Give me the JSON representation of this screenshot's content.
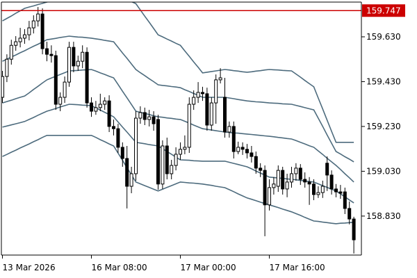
{
  "chart_data": {
    "type": "candlestick",
    "categories": [
      "13 Mar 2026",
      null,
      null,
      null,
      null,
      null,
      null,
      null,
      null,
      null,
      null,
      null,
      null,
      null,
      null,
      null,
      null,
      null,
      null,
      null,
      "16 Mar 08:00",
      null,
      null,
      null,
      null,
      null,
      null,
      null,
      null,
      null,
      null,
      null,
      null,
      null,
      null,
      null,
      null,
      null,
      null,
      null,
      "17 Mar 00:00",
      null,
      null,
      null,
      null,
      null,
      null,
      null,
      null,
      null,
      null,
      null,
      null,
      null,
      null,
      null,
      null,
      null,
      null,
      null,
      "17 Mar 16:00",
      null,
      null,
      null,
      null,
      null,
      null,
      null,
      null,
      null,
      null,
      null,
      null,
      null,
      null,
      null,
      null,
      null,
      null,
      null
    ],
    "open": [
      159.36,
      159.453,
      159.53,
      159.592,
      159.608,
      159.624,
      159.639,
      159.67,
      159.701,
      159.732,
      159.577,
      159.552,
      159.546,
      159.329,
      159.36,
      159.428,
      159.583,
      159.5,
      159.521,
      159.561,
      159.335,
      159.298,
      159.314,
      159.329,
      159.344,
      159.23,
      159.22,
      159.137,
      159.087,
      158.963,
      159.019,
      159.267,
      159.292,
      159.261,
      159.273,
      159.261,
      158.973,
      159.143,
      159.019,
      159.056,
      159.106,
      159.128,
      159.137,
      159.329,
      159.36,
      159.382,
      159.376,
      159.236,
      159.335,
      159.438,
      159.36,
      159.205,
      159.23,
      159.118,
      159.137,
      159.128,
      159.112,
      159.096,
      159.044,
      159.034,
      158.88,
      158.957,
      158.963,
      159.034,
      158.951,
      158.982,
      159.019,
      159.044,
      158.994,
      158.982,
      158.973,
      158.926,
      158.935,
      159.066,
      159.013,
      158.951,
      158.938,
      158.938,
      158.864,
      158.817
    ],
    "high": [
      159.478,
      159.552,
      159.617,
      159.633,
      159.67,
      159.664,
      159.701,
      159.726,
      159.763,
      159.757,
      159.608,
      159.592,
      159.568,
      159.382,
      159.453,
      159.608,
      159.608,
      159.546,
      159.592,
      159.583,
      159.36,
      159.344,
      159.376,
      159.36,
      159.369,
      159.261,
      159.242,
      159.159,
      159.143,
      159.05,
      159.298,
      159.32,
      159.314,
      159.304,
      159.298,
      159.282,
      159.168,
      159.18,
      159.081,
      159.137,
      159.159,
      159.19,
      159.36,
      159.391,
      159.428,
      159.407,
      159.403,
      159.36,
      159.462,
      159.49,
      159.447,
      159.252,
      159.252,
      159.162,
      159.159,
      159.152,
      159.143,
      159.118,
      159.066,
      159.056,
      158.994,
      159.004,
      159.056,
      159.05,
      159.019,
      159.05,
      159.066,
      159.062,
      159.025,
      159.004,
      158.994,
      158.963,
      158.988,
      159.096,
      159.034,
      158.973,
      158.969,
      158.957,
      158.895,
      158.827
    ],
    "low": [
      159.335,
      159.428,
      159.506,
      159.568,
      159.583,
      159.599,
      159.614,
      159.645,
      159.676,
      159.552,
      159.521,
      159.515,
      159.304,
      159.298,
      159.335,
      159.407,
      159.472,
      159.478,
      159.49,
      159.314,
      159.273,
      159.282,
      159.298,
      159.304,
      159.205,
      159.19,
      159.112,
      159.05,
      158.864,
      158.932,
      158.988,
      159.242,
      159.236,
      159.23,
      159.211,
      158.948,
      158.951,
      158.994,
      158.994,
      159.034,
      159.081,
      159.106,
      159.112,
      159.304,
      159.335,
      159.344,
      159.211,
      159.211,
      159.242,
      159.422,
      159.18,
      159.18,
      159.087,
      159.106,
      159.103,
      159.087,
      159.069,
      159.019,
      159.004,
      158.74,
      158.855,
      158.926,
      158.938,
      158.926,
      158.914,
      158.957,
      158.988,
      158.969,
      158.957,
      158.88,
      158.901,
      158.911,
      158.911,
      158.942,
      158.926,
      158.914,
      158.907,
      158.839,
      158.793,
      158.663
    ],
    "close": [
      159.453,
      159.53,
      159.592,
      159.608,
      159.624,
      159.639,
      159.67,
      159.701,
      159.732,
      159.577,
      159.552,
      159.546,
      159.329,
      159.36,
      159.428,
      159.583,
      159.5,
      159.521,
      159.561,
      159.335,
      159.298,
      159.314,
      159.329,
      159.344,
      159.23,
      159.22,
      159.137,
      159.087,
      158.963,
      159.019,
      159.267,
      159.292,
      159.261,
      159.273,
      159.242,
      158.973,
      159.143,
      159.019,
      159.056,
      159.106,
      159.128,
      159.137,
      159.329,
      159.36,
      159.382,
      159.376,
      159.236,
      159.335,
      159.438,
      159.447,
      159.205,
      159.23,
      159.118,
      159.137,
      159.128,
      159.112,
      159.096,
      159.044,
      159.034,
      158.88,
      158.957,
      158.973,
      159.034,
      158.951,
      158.982,
      159.019,
      159.044,
      158.994,
      158.982,
      158.973,
      158.926,
      158.935,
      158.963,
      159.013,
      158.951,
      158.938,
      158.932,
      158.864,
      158.817,
      158.724
    ],
    "up_color": "#ffffff",
    "down_color": "#000000",
    "bands": [
      {
        "color": "#4d6b7d",
        "values": [
          159.701,
          159.712,
          159.723,
          159.735,
          159.746,
          159.757,
          159.763,
          159.768,
          159.774,
          159.779,
          159.785,
          159.79,
          159.795,
          159.8,
          159.805,
          159.81,
          159.813,
          159.816,
          159.819,
          159.822,
          159.825,
          159.825,
          159.825,
          159.825,
          159.825,
          159.825,
          159.816,
          159.806,
          159.797,
          159.787,
          159.778,
          159.75,
          159.722,
          159.695,
          159.667,
          159.639,
          159.63,
          159.62,
          159.611,
          159.601,
          159.592,
          159.567,
          159.543,
          159.518,
          159.494,
          159.469,
          159.472,
          159.475,
          159.478,
          159.481,
          159.484,
          159.482,
          159.479,
          159.477,
          159.474,
          159.472,
          159.474,
          159.477,
          159.479,
          159.482,
          159.484,
          159.483,
          159.482,
          159.48,
          159.479,
          159.478,
          159.464,
          159.45,
          159.435,
          159.421,
          159.407,
          159.357,
          159.308,
          159.258,
          159.208,
          159.159,
          159.159,
          159.159,
          159.159,
          159.159
        ]
      },
      {
        "color": "#4d6b7d",
        "values": [
          159.521,
          159.53,
          159.54,
          159.549,
          159.559,
          159.568,
          159.578,
          159.588,
          159.597,
          159.607,
          159.617,
          159.62,
          159.623,
          159.627,
          159.63,
          159.633,
          159.631,
          159.629,
          159.628,
          159.626,
          159.624,
          159.621,
          159.618,
          159.614,
          159.611,
          159.608,
          159.583,
          159.558,
          159.534,
          159.509,
          159.484,
          159.47,
          159.457,
          159.443,
          159.43,
          159.416,
          159.413,
          159.411,
          159.408,
          159.406,
          159.403,
          159.394,
          159.386,
          159.377,
          159.369,
          159.36,
          159.36,
          159.36,
          159.36,
          159.36,
          159.36,
          159.357,
          159.354,
          159.35,
          159.347,
          159.344,
          159.342,
          159.34,
          159.339,
          159.337,
          159.335,
          159.334,
          159.333,
          159.331,
          159.33,
          159.329,
          159.324,
          159.319,
          159.314,
          159.309,
          159.304,
          159.267,
          159.23,
          159.192,
          159.155,
          159.118,
          159.107,
          159.095,
          159.084,
          159.072
        ]
      },
      {
        "color": "#4d6b7d",
        "values": [
          159.335,
          159.341,
          159.347,
          159.354,
          159.36,
          159.366,
          159.38,
          159.395,
          159.409,
          159.424,
          159.438,
          159.446,
          159.454,
          159.462,
          159.47,
          159.478,
          159.479,
          159.48,
          159.482,
          159.483,
          159.484,
          159.477,
          159.469,
          159.462,
          159.454,
          159.447,
          159.417,
          159.387,
          159.358,
          159.328,
          159.298,
          159.293,
          159.288,
          159.283,
          159.278,
          159.273,
          159.271,
          159.268,
          159.266,
          159.263,
          159.261,
          159.253,
          159.245,
          159.236,
          159.228,
          159.22,
          159.217,
          159.214,
          159.211,
          159.208,
          159.205,
          159.203,
          159.201,
          159.2,
          159.198,
          159.196,
          159.194,
          159.192,
          159.19,
          159.188,
          159.186,
          159.184,
          159.181,
          159.179,
          159.176,
          159.174,
          159.167,
          159.159,
          159.152,
          159.144,
          159.137,
          159.121,
          159.105,
          159.088,
          159.072,
          159.056,
          159.038,
          159.019,
          159.001,
          158.982
        ]
      },
      {
        "color": "#4d6b7d",
        "values": [
          159.227,
          159.232,
          159.237,
          159.242,
          159.247,
          159.252,
          159.261,
          159.27,
          159.28,
          159.289,
          159.298,
          159.304,
          159.31,
          159.317,
          159.323,
          159.329,
          159.328,
          159.327,
          159.325,
          159.324,
          159.323,
          159.313,
          159.303,
          159.293,
          159.283,
          159.273,
          159.25,
          159.227,
          159.205,
          159.182,
          159.159,
          159.156,
          159.153,
          159.149,
          159.146,
          159.143,
          159.131,
          159.118,
          159.106,
          159.093,
          159.081,
          159.08,
          159.079,
          159.077,
          159.076,
          159.075,
          159.075,
          159.075,
          159.075,
          159.075,
          159.075,
          159.07,
          159.065,
          159.06,
          159.055,
          159.05,
          159.041,
          159.031,
          159.022,
          159.013,
          159.004,
          159.002,
          159.0,
          158.998,
          158.996,
          158.994,
          158.992,
          158.989,
          158.987,
          158.984,
          158.982,
          158.974,
          158.966,
          158.958,
          158.95,
          158.942,
          158.929,
          158.916,
          158.902,
          158.889
        ]
      },
      {
        "color": "#4d6b7d",
        "values": [
          159.096,
          159.105,
          159.115,
          159.124,
          159.134,
          159.143,
          159.152,
          159.162,
          159.171,
          159.181,
          159.19,
          159.19,
          159.19,
          159.19,
          159.19,
          159.19,
          159.19,
          159.19,
          159.19,
          159.19,
          159.19,
          159.181,
          159.171,
          159.162,
          159.152,
          159.143,
          159.111,
          159.079,
          159.046,
          159.014,
          158.982,
          158.974,
          158.966,
          158.958,
          158.95,
          158.942,
          158.95,
          158.958,
          158.966,
          158.974,
          158.982,
          158.98,
          158.978,
          158.977,
          158.975,
          158.973,
          158.97,
          158.967,
          158.963,
          158.96,
          158.957,
          158.948,
          158.939,
          158.929,
          158.92,
          158.911,
          158.905,
          158.899,
          158.892,
          158.886,
          158.88,
          158.874,
          158.868,
          158.861,
          158.855,
          158.849,
          158.841,
          158.833,
          158.824,
          158.816,
          158.808,
          158.806,
          158.803,
          158.801,
          158.798,
          158.796,
          158.798,
          158.799,
          158.801,
          158.802
        ]
      }
    ],
    "hline": {
      "value": 159.747,
      "color": "#cc0000"
    },
    "ylim": [
      158.656,
      159.785
    ],
    "yticks": [
      {
        "value": 159.63,
        "label": "159.630"
      },
      {
        "value": 159.43,
        "label": "159.430"
      },
      {
        "value": 159.23,
        "label": "159.230"
      },
      {
        "value": 159.03,
        "label": "159.030"
      },
      {
        "value": 158.83,
        "label": "158.830"
      }
    ]
  }
}
